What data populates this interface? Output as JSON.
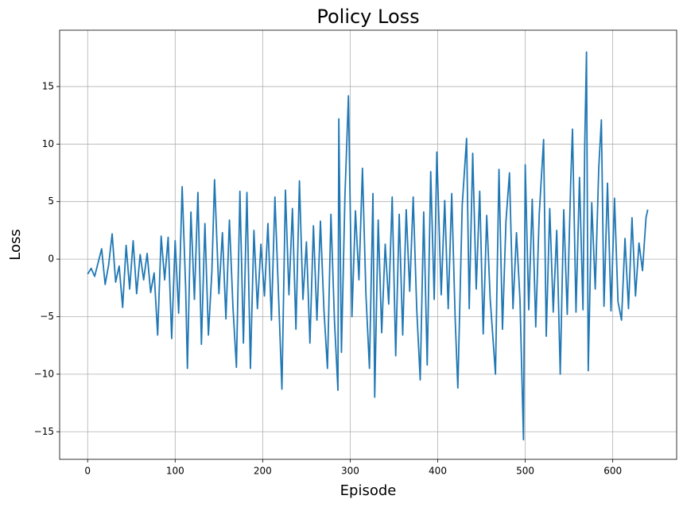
{
  "chart_data": {
    "type": "line",
    "title": "Policy Loss",
    "x_label": "Episode",
    "y_label": "Loss",
    "color": "#1f77b4",
    "grid": true,
    "xlim": [
      -32,
      673
    ],
    "ylim": [
      -17.4,
      19.9
    ],
    "xticks": [
      0,
      100,
      200,
      300,
      400,
      500,
      600
    ],
    "yticks": [
      {
        "value": -15,
        "label": "−15"
      },
      {
        "value": -10,
        "label": "−10"
      },
      {
        "value": -5,
        "label": "−5"
      },
      0,
      5,
      10,
      15
    ],
    "x": [
      0,
      4,
      8,
      12,
      16,
      20,
      24,
      28,
      32,
      36,
      40,
      44,
      48,
      52,
      56,
      60,
      64,
      68,
      72,
      76,
      80,
      84,
      88,
      92,
      96,
      100,
      104,
      108,
      112,
      114,
      118,
      122,
      126,
      130,
      134,
      138,
      142,
      145,
      150,
      154,
      158,
      162,
      166,
      170,
      174,
      178,
      182,
      186,
      190,
      194,
      198,
      202,
      206,
      210,
      214,
      218,
      222,
      226,
      230,
      234,
      238,
      242,
      246,
      250,
      254,
      258,
      262,
      266,
      270,
      274,
      278,
      282,
      286,
      287,
      290,
      294,
      298,
      302,
      306,
      310,
      314,
      318,
      322,
      326,
      328,
      332,
      336,
      340,
      344,
      348,
      352,
      356,
      360,
      364,
      368,
      372,
      376,
      380,
      384,
      388,
      392,
      396,
      399,
      404,
      408,
      412,
      416,
      420,
      423,
      428,
      433,
      436,
      440,
      444,
      448,
      452,
      456,
      460,
      466,
      470,
      474,
      478,
      482,
      486,
      490,
      494,
      498,
      500,
      504,
      508,
      512,
      516,
      521,
      524,
      528,
      532,
      536,
      540,
      544,
      548,
      552,
      554,
      558,
      562,
      566,
      568,
      570,
      572,
      576,
      580,
      584,
      587,
      590,
      594,
      598,
      602,
      606,
      610,
      614,
      618,
      622,
      626,
      630,
      634,
      638,
      640
    ],
    "values": [
      -1.3,
      -0.8,
      -1.5,
      -0.3,
      0.9,
      -2.2,
      -0.5,
      2.2,
      -2,
      -0.6,
      -4.2,
      1.2,
      -2.6,
      1.6,
      -3,
      0.4,
      -1.8,
      0.5,
      -2.9,
      -1.2,
      -6.6,
      2,
      -1.8,
      1.9,
      -6.9,
      1.6,
      -4.7,
      6.3,
      -2.5,
      -9.5,
      4.1,
      -3.5,
      5.8,
      -7.4,
      3.1,
      -6.6,
      -1,
      6.9,
      -3,
      2.3,
      -5.2,
      3.4,
      -4.1,
      -9.4,
      5.9,
      -7.3,
      5.8,
      -9.5,
      2.5,
      -4.3,
      1.3,
      -3.2,
      3.1,
      -5.3,
      5.4,
      -2.9,
      -11.3,
      6,
      -3.1,
      4.4,
      -6.1,
      6.8,
      -3.5,
      1.5,
      -7.3,
      2.9,
      -5.3,
      3.3,
      -4.4,
      -9.5,
      3.9,
      -5.3,
      -11.4,
      12.2,
      -8.1,
      5.5,
      14.2,
      -5,
      4.2,
      -1.8,
      7.9,
      -3.1,
      -9.5,
      5.7,
      -12,
      3.4,
      -6.4,
      1.3,
      -3.9,
      5.4,
      -8.4,
      3.9,
      -6.6,
      4.3,
      -2.8,
      5.4,
      -4.3,
      -10.5,
      4.1,
      -9.2,
      7.6,
      -3.5,
      9.3,
      -3.1,
      5.1,
      -4.3,
      5.7,
      -5.3,
      -11.2,
      4.7,
      10.5,
      -4.3,
      9.2,
      -2.6,
      5.9,
      -6.5,
      3.8,
      -3.5,
      -10,
      7.8,
      -6.1,
      3.3,
      7.5,
      -4.3,
      2.3,
      -3.5,
      -15.7,
      8.2,
      -4.4,
      5.2,
      -5.9,
      3.9,
      10.4,
      -6.7,
      4.4,
      -4.6,
      2.5,
      -10,
      4.3,
      -4.8,
      6.8,
      11.3,
      -4.6,
      7.1,
      -4.4,
      10,
      18,
      -9.7,
      4.9,
      -2.6,
      7.9,
      12.1,
      -4.1,
      6.6,
      -4.5,
      5.3,
      -3.7,
      -5.3,
      1.8,
      -4.3,
      3.6,
      -3.2,
      1.4,
      -1,
      3.6,
      4.3
    ]
  }
}
